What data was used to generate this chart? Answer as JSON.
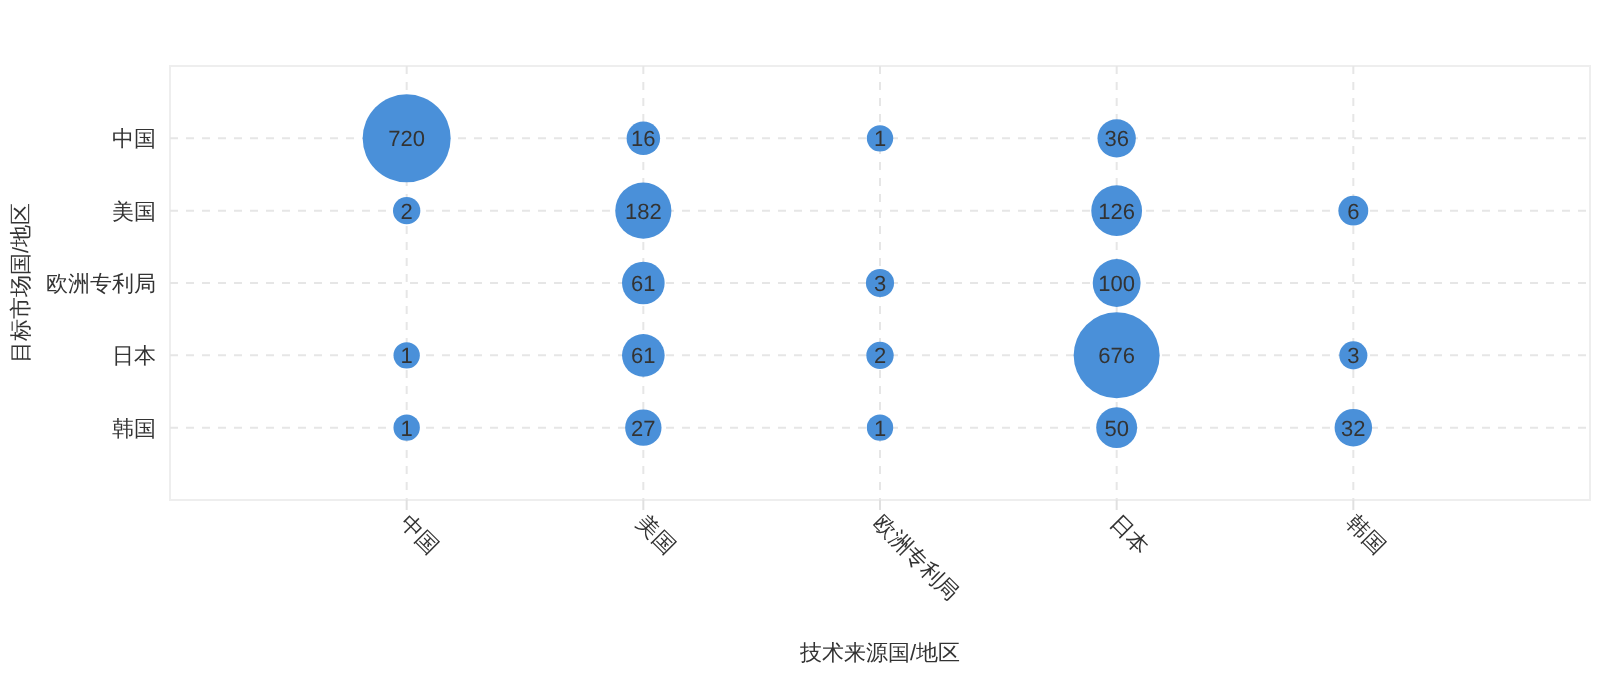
{
  "chart_data": {
    "type": "heatmap",
    "xlabel": "技术来源国/地区",
    "ylabel": "目标市场国/地区",
    "categories": [
      "中国",
      "美国",
      "欧洲专利局",
      "日本",
      "韩国"
    ],
    "y_categories": [
      "中国",
      "美国",
      "欧洲专利局",
      "日本",
      "韩国"
    ],
    "grid": true,
    "data_labels": true,
    "color": "#4a90d9",
    "cells": [
      [
        720,
        16,
        1,
        36,
        null
      ],
      [
        2,
        182,
        null,
        126,
        6
      ],
      [
        null,
        61,
        3,
        100,
        null
      ],
      [
        1,
        61,
        2,
        676,
        3
      ],
      [
        1,
        27,
        1,
        50,
        32
      ]
    ]
  }
}
